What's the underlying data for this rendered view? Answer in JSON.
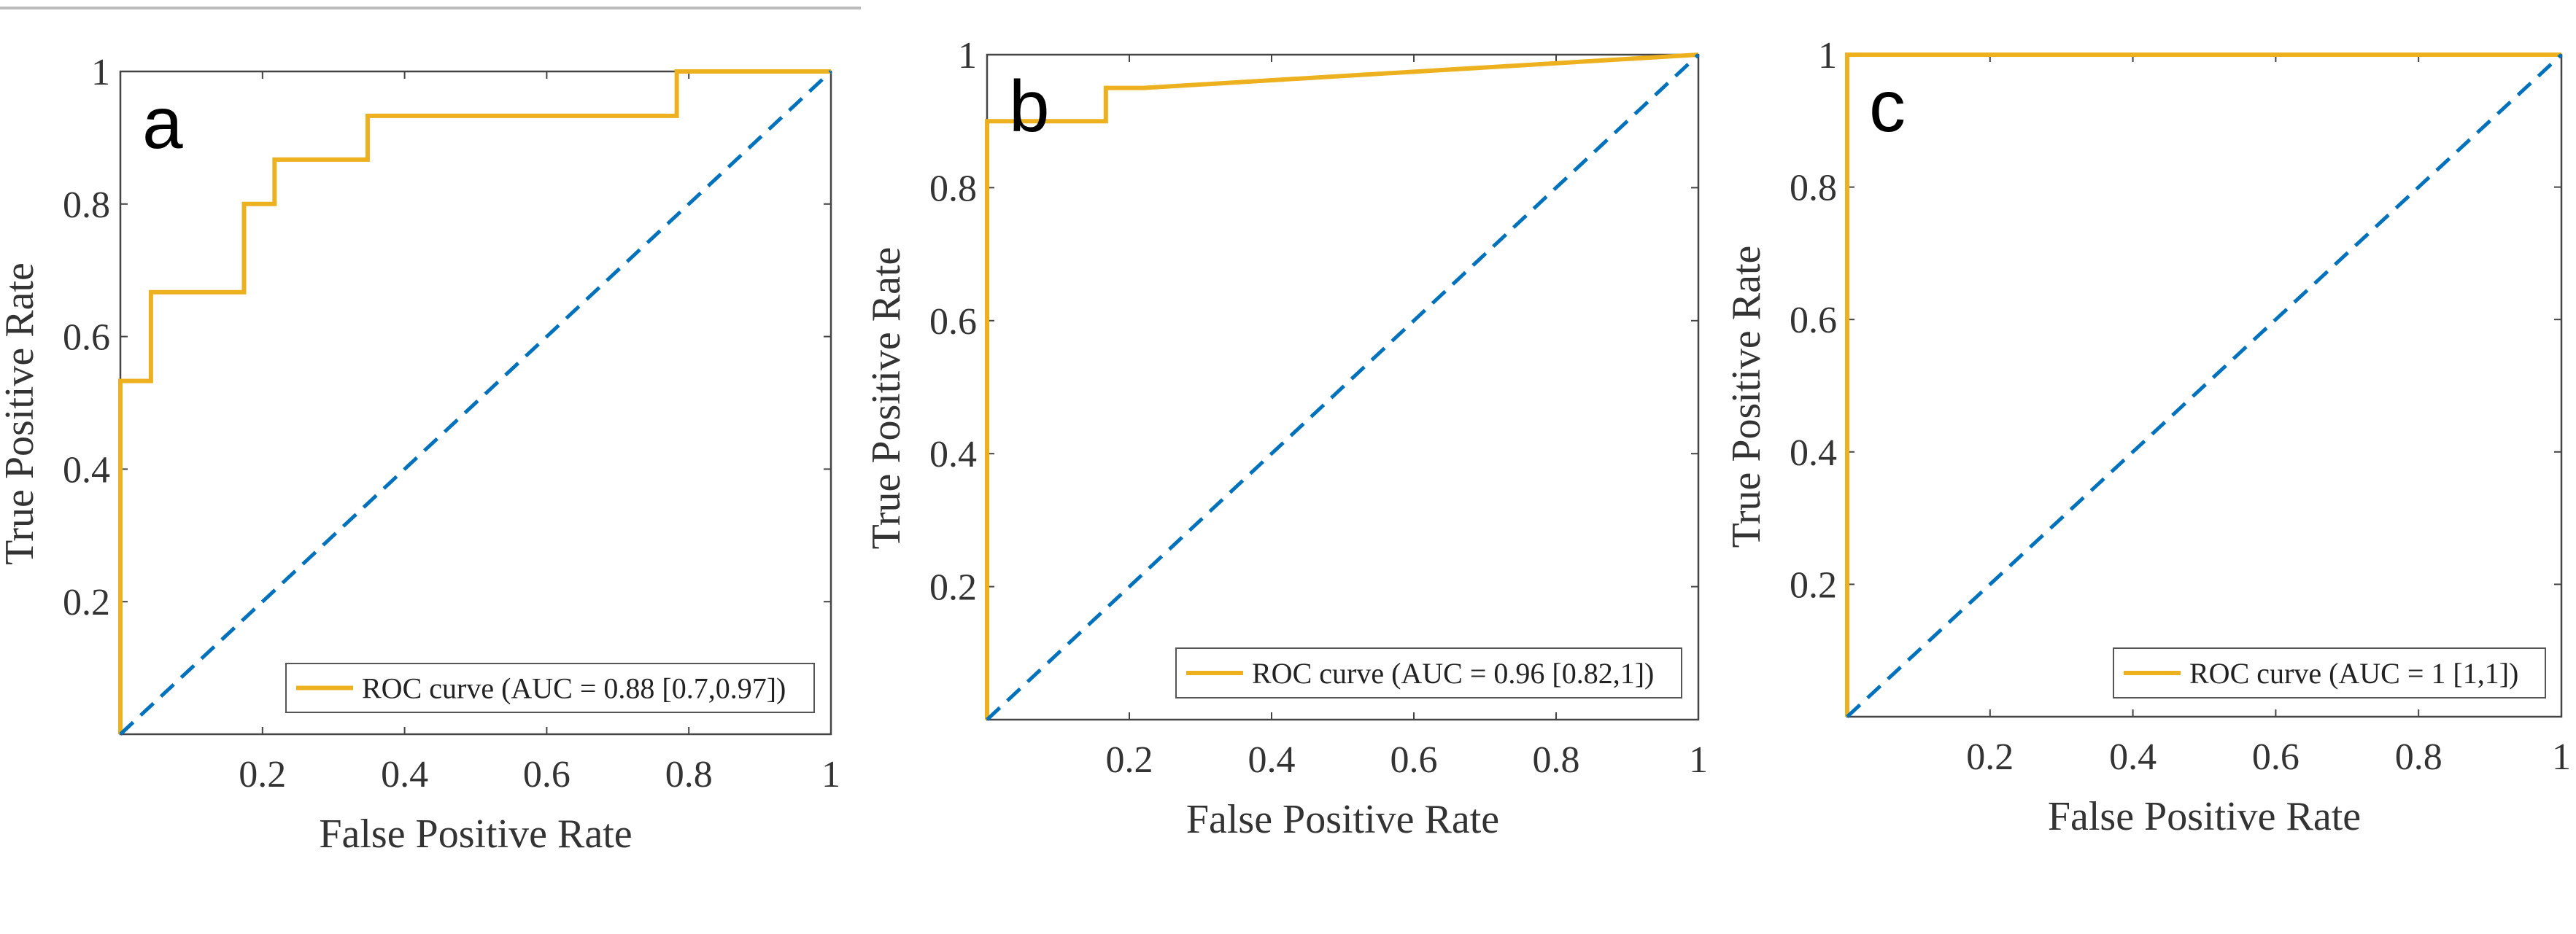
{
  "chart_data": [
    {
      "type": "line",
      "panel_label": "a",
      "xlabel": "False Positive Rate",
      "ylabel": "True Positive Rate",
      "xlim": [
        0,
        1
      ],
      "ylim": [
        0,
        1
      ],
      "xticks": [
        "0.2",
        "0.4",
        "0.6",
        "0.8",
        "1"
      ],
      "yticks": [
        "0.2",
        "0.4",
        "0.6",
        "0.8",
        "1"
      ],
      "grid": false,
      "legend_position": "bottom-right",
      "series": [
        {
          "name": "ROC curve (AUC = 0.88 [0.7,0.97])",
          "color": "#EDB120",
          "style": "solid",
          "x": [
            0,
            0,
            0.043,
            0.043,
            0.174,
            0.174,
            0.217,
            0.217,
            0.348,
            0.348,
            0.783,
            0.783,
            1
          ],
          "y": [
            0,
            0.533,
            0.533,
            0.667,
            0.667,
            0.8,
            0.8,
            0.867,
            0.867,
            0.933,
            0.933,
            1,
            1
          ]
        },
        {
          "color": "#0072BD",
          "style": "dashed",
          "x": [
            0,
            1
          ],
          "y": [
            0,
            1
          ]
        }
      ]
    },
    {
      "type": "line",
      "panel_label": "b",
      "xlabel": "False Positive Rate",
      "ylabel": "True Positive Rate",
      "xlim": [
        0,
        1
      ],
      "ylim": [
        0,
        1
      ],
      "xticks": [
        "0.2",
        "0.4",
        "0.6",
        "0.8",
        "1"
      ],
      "yticks": [
        "0.2",
        "0.4",
        "0.6",
        "0.8",
        "1"
      ],
      "grid": false,
      "legend_position": "bottom-right",
      "series": [
        {
          "name": "ROC curve (AUC = 0.96 [0.82,1])",
          "color": "#EDB120",
          "style": "solid",
          "x": [
            0,
            0,
            0.167,
            0.167,
            0.22,
            1
          ],
          "y": [
            0,
            0.9,
            0.9,
            0.95,
            0.95,
            1
          ]
        },
        {
          "color": "#0072BD",
          "style": "dashed",
          "x": [
            0,
            1
          ],
          "y": [
            0,
            1
          ]
        }
      ]
    },
    {
      "type": "line",
      "panel_label": "c",
      "xlabel": "False Positive Rate",
      "ylabel": "True Positive Rate",
      "xlim": [
        0,
        1
      ],
      "ylim": [
        0,
        1
      ],
      "xticks": [
        "0.2",
        "0.4",
        "0.6",
        "0.8",
        "1"
      ],
      "yticks": [
        "0.2",
        "0.4",
        "0.6",
        "0.8",
        "1"
      ],
      "grid": false,
      "legend_position": "bottom-right",
      "series": [
        {
          "name": "ROC curve (AUC = 1 [1,1])",
          "color": "#EDB120",
          "style": "solid",
          "x": [
            0,
            0,
            1
          ],
          "y": [
            0,
            1,
            1
          ]
        },
        {
          "color": "#0072BD",
          "style": "dashed",
          "x": [
            0,
            1
          ],
          "y": [
            0,
            1
          ]
        }
      ]
    }
  ]
}
